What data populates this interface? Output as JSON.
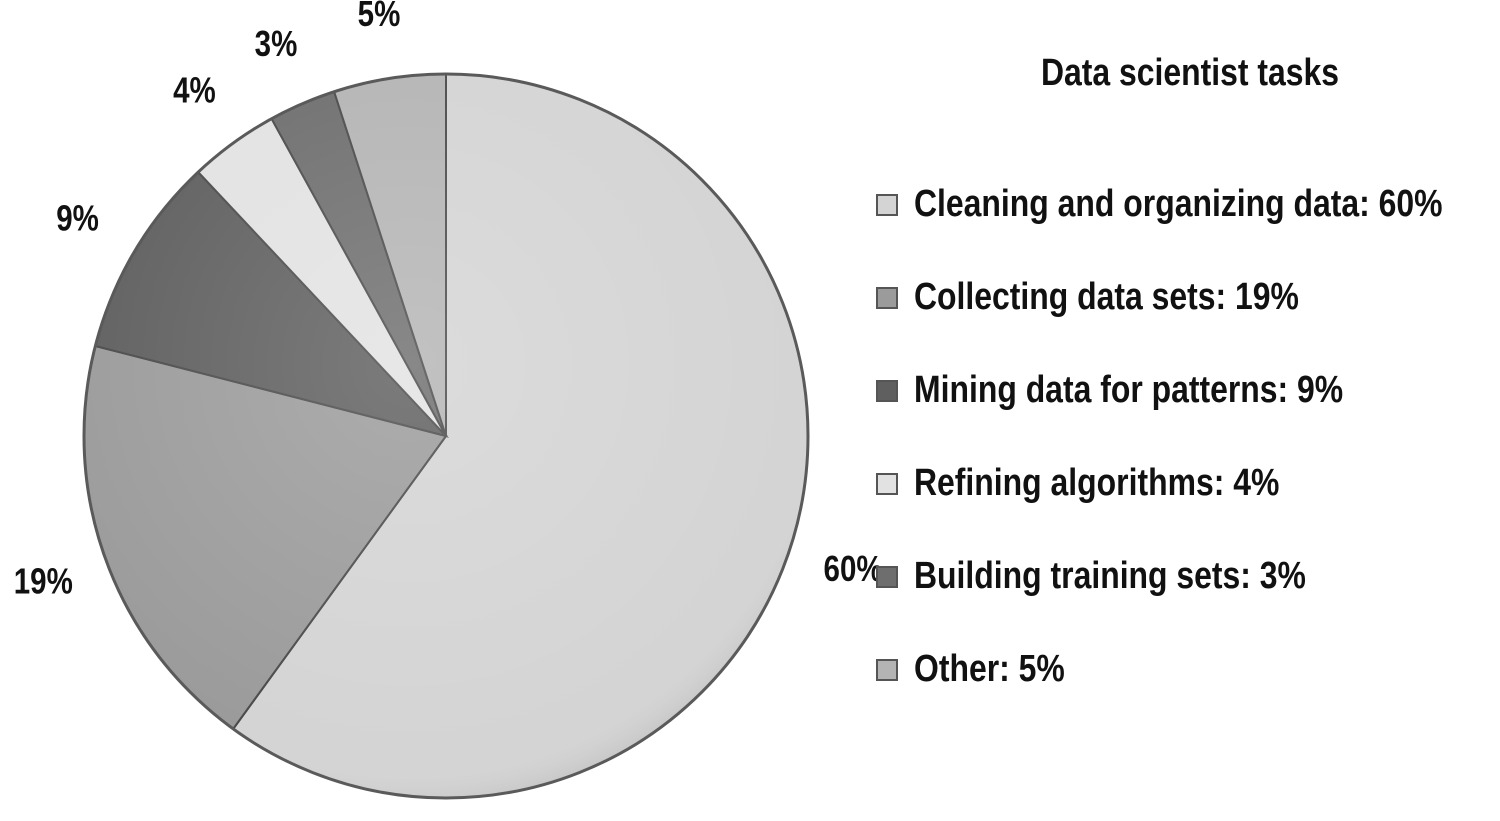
{
  "chart_data": {
    "type": "pie",
    "title": "",
    "legend_title": "Data scientist tasks",
    "legend_position": "right",
    "start_angle_deg": 0,
    "direction": "clockwise",
    "slices": [
      {
        "name": "Cleaning and organizing data: 60%",
        "value": 60,
        "label": "60%",
        "color": "#d4d4d4"
      },
      {
        "name": "Collecting data sets: 19%",
        "value": 19,
        "label": "19%",
        "color": "#9b9b9b"
      },
      {
        "name": "Mining data for patterns: 9%",
        "value": 9,
        "label": "9%",
        "color": "#5f5f5f"
      },
      {
        "name": "Refining algorithms: 4%",
        "value": 4,
        "label": "4%",
        "color": "#e2e2e2"
      },
      {
        "name": "Building training sets: 3%",
        "value": 3,
        "label": "3%",
        "color": "#6e6e6e"
      },
      {
        "name": "Other: 5%",
        "value": 5,
        "label": "5%",
        "color": "#b4b4b4"
      }
    ]
  }
}
